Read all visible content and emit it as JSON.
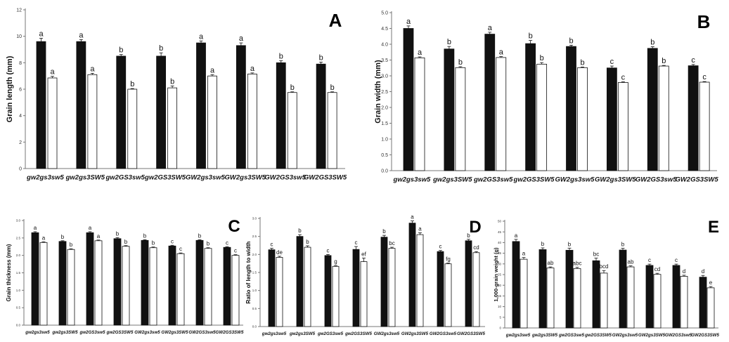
{
  "chart_data": [
    {
      "type": "bar",
      "panel": "A",
      "title": "",
      "xlabel": "",
      "ylabel": "Grain length (mm)",
      "ylim": [
        0,
        12
      ],
      "yticks": [
        0,
        2,
        4,
        6,
        8,
        10,
        12
      ],
      "grid": false,
      "categories": [
        "gw2gs3sw5",
        "gw2gs3SW5",
        "gw2GS3sw5",
        "gw2GS3SW5",
        "GW2gs3sw5",
        "GW2gs3SW5",
        "GW2GS3sw5",
        "GW2GS3SW5"
      ],
      "series": [
        {
          "color": "#111111",
          "values": [
            9.6,
            9.6,
            8.5,
            8.5,
            9.5,
            9.3,
            8.0,
            7.9
          ],
          "errors": [
            0.25,
            0.15,
            0.12,
            0.25,
            0.15,
            0.2,
            0.15,
            0.15
          ],
          "labels": [
            "a",
            "a",
            "b",
            "b",
            "a",
            "a",
            "b",
            "b"
          ]
        },
        {
          "color": "#ffffff",
          "values": [
            6.85,
            7.1,
            6.0,
            6.1,
            7.0,
            7.15,
            5.75,
            5.75
          ],
          "errors": [
            0.12,
            0.1,
            0.05,
            0.15,
            0.1,
            0.08,
            0.05,
            0.05
          ],
          "labels": [
            "a",
            "a",
            "b",
            "b",
            "a",
            "a",
            "b",
            "b"
          ]
        }
      ]
    },
    {
      "type": "bar",
      "panel": "B",
      "title": "",
      "xlabel": "",
      "ylabel": "Grain width (mm)",
      "ylim": [
        0,
        5
      ],
      "yticks": [
        0,
        0.5,
        1,
        1.5,
        2,
        2.5,
        3,
        3.5,
        4,
        4.5,
        5
      ],
      "grid": false,
      "categories": [
        "gw2gs3sw5",
        "gw2gs3SW5",
        "gw2GS3sw5",
        "gw2GS3SW5",
        "GW2gs3sw5",
        "GW2gs3SW5",
        "GW2GS3sw5",
        "GW2GS3SW5"
      ],
      "series": [
        {
          "color": "#111111",
          "values": [
            4.5,
            3.85,
            4.32,
            4.02,
            3.93,
            3.25,
            3.87,
            3.32
          ],
          "errors": [
            0.08,
            0.08,
            0.06,
            0.1,
            0.04,
            0.06,
            0.05,
            0.04
          ],
          "labels": [
            "a",
            "b",
            "a",
            "b",
            "b",
            "c",
            "b",
            "c"
          ]
        },
        {
          "color": "#ffffff",
          "values": [
            3.57,
            3.26,
            3.58,
            3.37,
            3.26,
            2.79,
            3.31,
            2.8
          ],
          "errors": [
            0.03,
            0.03,
            0.03,
            0.05,
            0.02,
            0.02,
            0.02,
            0.02
          ],
          "labels": [
            "a",
            "b",
            "a",
            "b",
            "b",
            "c",
            "b",
            "c"
          ]
        }
      ]
    },
    {
      "type": "bar",
      "panel": "C",
      "title": "",
      "xlabel": "",
      "ylabel": "Grain thickness (mm)",
      "ylim": [
        0,
        3
      ],
      "yticks": [
        0,
        0.5,
        1,
        1.5,
        2,
        2.5,
        3
      ],
      "grid": false,
      "categories": [
        "gw2gs3sw5",
        "gw2gs3SW5",
        "gw2GS3sw5",
        "gw2GS3SW5",
        "GW2gs3sw5",
        "GW2gs3SW5",
        "GW2GS3sw5",
        "GW2GS3SW5"
      ],
      "series": [
        {
          "color": "#111111",
          "values": [
            2.65,
            2.4,
            2.65,
            2.48,
            2.43,
            2.27,
            2.43,
            2.23
          ],
          "errors": [
            0.03,
            0.02,
            0.03,
            0.03,
            0.02,
            0.02,
            0.02,
            0.02
          ],
          "labels": [
            "a",
            "b",
            "a",
            "b",
            "b",
            "c",
            "b",
            "c"
          ]
        },
        {
          "color": "#ffffff",
          "values": [
            2.37,
            2.17,
            2.42,
            2.26,
            2.22,
            2.05,
            2.2,
            2.0
          ],
          "errors": [
            0.02,
            0.02,
            0.02,
            0.02,
            0.02,
            0.02,
            0.02,
            0.02
          ],
          "labels": [
            "a",
            "b",
            "a",
            "b",
            "b",
            "c",
            "b",
            "c"
          ]
        }
      ]
    },
    {
      "type": "bar",
      "panel": "D",
      "title": "",
      "xlabel": "",
      "ylabel": "Ratio of length to width",
      "ylim": [
        0,
        3
      ],
      "yticks": [
        0,
        0.5,
        1,
        1.5,
        2,
        2.5,
        3
      ],
      "grid": false,
      "categories": [
        "gw2gs3sw5",
        "gw2gs3SW5",
        "gw2GS3sw5",
        "gw2GS3SW5",
        "GW2gs3sw5",
        "GW2gs3SW5",
        "GW2GS3sw5",
        "GW2GS3SW5"
      ],
      "series": [
        {
          "color": "#111111",
          "values": [
            2.13,
            2.5,
            1.97,
            2.14,
            2.48,
            2.87,
            2.08,
            2.38
          ],
          "errors": [
            0.04,
            0.05,
            0.03,
            0.08,
            0.05,
            0.06,
            0.03,
            0.04
          ],
          "labels": [
            "c",
            "b",
            "c",
            "c",
            "b",
            "a",
            "c",
            "b"
          ]
        },
        {
          "color": "#ffffff",
          "values": [
            1.92,
            2.2,
            1.67,
            1.8,
            2.17,
            2.55,
            1.74,
            2.05
          ],
          "errors": [
            0.03,
            0.04,
            0.02,
            0.1,
            0.03,
            0.05,
            0.02,
            0.03
          ],
          "labels": [
            "de",
            "b",
            "g",
            "ef",
            "bc",
            "a",
            "fg",
            "cd"
          ]
        }
      ]
    },
    {
      "type": "bar",
      "panel": "E",
      "title": "",
      "xlabel": "",
      "ylabel": "1,000-grain weight (g)",
      "ylim": [
        0,
        50
      ],
      "yticks": [
        0,
        5,
        10,
        15,
        20,
        25,
        30,
        35,
        40,
        45,
        50
      ],
      "grid": false,
      "categories": [
        "gw2gs3sw5",
        "gw2gs3SW5",
        "gw2GS3sw5",
        "gw2GS3SW5",
        "GW2gs3sw5",
        "GW2gs3SW5",
        "GW2GS3sw5",
        "GW2GS3SW5"
      ],
      "series": [
        {
          "color": "#111111",
          "values": [
            40.5,
            36.7,
            36.4,
            31.5,
            36.5,
            29.3,
            29.3,
            23.8
          ],
          "errors": [
            1.0,
            0.8,
            1.0,
            1.2,
            0.8,
            0.6,
            0.6,
            0.8
          ],
          "labels": [
            "a",
            "b",
            "b",
            "bc",
            "b",
            "c",
            "c",
            "d"
          ]
        },
        {
          "color": "#ffffff",
          "values": [
            32.2,
            28.1,
            27.8,
            25.7,
            28.6,
            25.1,
            24.2,
            18.8
          ],
          "errors": [
            0.8,
            0.5,
            0.6,
            1.2,
            0.5,
            0.5,
            0.5,
            0.6
          ],
          "labels": [
            "a",
            "ab",
            "abc",
            "bcd",
            "ab",
            "cd",
            "d",
            "e"
          ]
        }
      ]
    }
  ]
}
